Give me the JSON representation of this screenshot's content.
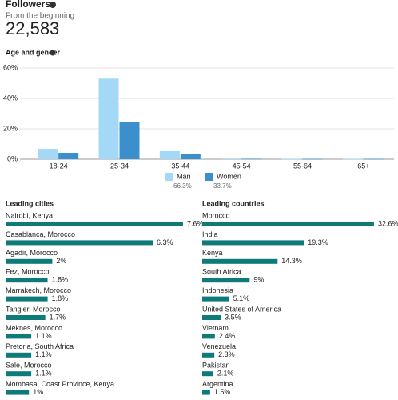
{
  "header": {
    "title": "Followers",
    "subtitle": "From the beginning",
    "total": "22,583"
  },
  "chart_data": {
    "type": "bar",
    "title": "Age and gender",
    "categories": [
      "18-24",
      "25-34",
      "35-44",
      "45-54",
      "55-64",
      "65+"
    ],
    "series": [
      {
        "name": "Man",
        "color": "#a3d9f6",
        "values": [
          6.8,
          53,
          5.3,
          0.4,
          0.3,
          0.3
        ],
        "share": "66.3%"
      },
      {
        "name": "Women",
        "color": "#3b8fcb",
        "values": [
          4.2,
          24.7,
          3.2,
          0.3,
          0.2,
          0.2
        ],
        "share": "33.7%"
      }
    ],
    "ylim": [
      0,
      60
    ],
    "yticks": [
      {
        "value": 0,
        "label": "0%"
      },
      {
        "value": 20,
        "label": "20%"
      },
      {
        "value": 40,
        "label": "40%"
      },
      {
        "value": 60,
        "label": "60%"
      }
    ],
    "grid": true
  },
  "leading_cities": {
    "title": "Leading cities",
    "color": "#0e7b7a",
    "items": [
      {
        "name": "Nairobi, Kenya",
        "value": 7.6,
        "value_label": "7.6%"
      },
      {
        "name": "Casablanca, Morocco",
        "value": 6.3,
        "value_label": "6.3%"
      },
      {
        "name": "Agadir, Morocco",
        "value": 2,
        "value_label": "2%"
      },
      {
        "name": "Fez, Morocco",
        "value": 1.8,
        "value_label": "1.8%"
      },
      {
        "name": "Marrakech, Morocco",
        "value": 1.8,
        "value_label": "1.8%"
      },
      {
        "name": "Tangier, Morocco",
        "value": 1.7,
        "value_label": "1.7%"
      },
      {
        "name": "Meknes, Morocco",
        "value": 1.1,
        "value_label": "1.1%"
      },
      {
        "name": "Pretoria, South Africa",
        "value": 1.1,
        "value_label": "1.1%"
      },
      {
        "name": "Sale, Morocco",
        "value": 1.1,
        "value_label": "1.1%"
      },
      {
        "name": "Mombasa, Coast Province, Kenya",
        "value": 1,
        "value_label": "1%"
      }
    ]
  },
  "leading_countries": {
    "title": "Leading countries",
    "color": "#0e7b7a",
    "items": [
      {
        "name": "Morocco",
        "value": 32.6,
        "value_label": "32.6%"
      },
      {
        "name": "India",
        "value": 19.3,
        "value_label": "19.3%"
      },
      {
        "name": "Kenya",
        "value": 14.3,
        "value_label": "14.3%"
      },
      {
        "name": "South Africa",
        "value": 9,
        "value_label": "9%"
      },
      {
        "name": "Indonesia",
        "value": 5.1,
        "value_label": "5.1%"
      },
      {
        "name": "United States of America",
        "value": 3.5,
        "value_label": "3.5%"
      },
      {
        "name": "Vietnam",
        "value": 2.4,
        "value_label": "2.4%"
      },
      {
        "name": "Venezuela",
        "value": 2.3,
        "value_label": "2.3%"
      },
      {
        "name": "Pakistan",
        "value": 2.1,
        "value_label": "2.1%"
      },
      {
        "name": "Argentina",
        "value": 1.5,
        "value_label": "1.5%"
      }
    ]
  }
}
